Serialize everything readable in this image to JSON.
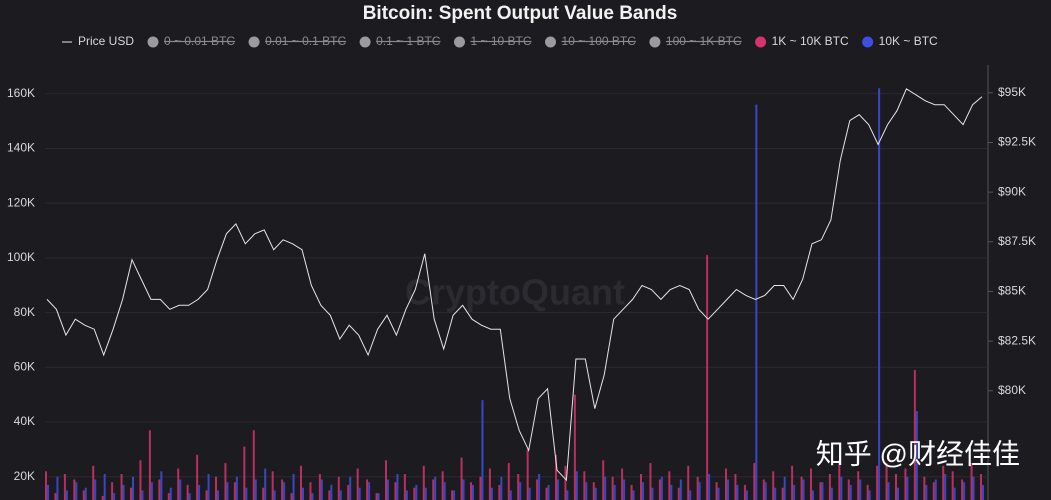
{
  "chart_data": {
    "type": "bar-line",
    "title": "Bitcoin: Spent Output Value Bands",
    "watermark": "CryptoQuant",
    "credit": "知乎 @财经佳佳",
    "ylim": [
      11500,
      170500
    ],
    "yticks": [
      {
        "value": 20000,
        "label": "20K"
      },
      {
        "value": 40000,
        "label": "40K"
      },
      {
        "value": 60000,
        "label": "60K"
      },
      {
        "value": 80000,
        "label": "80K"
      },
      {
        "value": 100000,
        "label": "100K"
      },
      {
        "value": 120000,
        "label": "120K"
      },
      {
        "value": 140000,
        "label": "140K"
      },
      {
        "value": 160000,
        "label": "160K"
      }
    ],
    "y2lim": [
      74500,
      96400
    ],
    "y2ticks": [
      {
        "value": 80000,
        "label": "$80K"
      },
      {
        "value": 82500,
        "label": "$82.5K"
      },
      {
        "value": 85000,
        "label": "$85K"
      },
      {
        "value": 87500,
        "label": "$87.5K"
      },
      {
        "value": 90000,
        "label": "$90K"
      },
      {
        "value": 92500,
        "label": "$92.5K"
      },
      {
        "value": 95000,
        "label": "$95K"
      }
    ],
    "grid": true,
    "hidden_series": [
      {
        "name": "0 ~ 0.01 BTC",
        "color": "#9a9aa0"
      },
      {
        "name": "0.01 ~ 0.1 BTC",
        "color": "#9a9aa0"
      },
      {
        "name": "0.1 ~ 1 BTC",
        "color": "#9a9aa0"
      },
      {
        "name": "1 ~ 10 BTC",
        "color": "#9a9aa0"
      },
      {
        "name": "10 ~ 100 BTC",
        "color": "#9a9aa0"
      },
      {
        "name": "100 ~ 1K BTC",
        "color": "#9a9aa0"
      }
    ],
    "series": [
      {
        "name": "Price USD",
        "type": "line",
        "axis": "y2",
        "color": "#e6e6e6",
        "values": [
          84600,
          84100,
          82800,
          83600,
          83300,
          83100,
          81800,
          83100,
          84600,
          86600,
          85600,
          84600,
          84600,
          84100,
          84300,
          84300,
          84600,
          85100,
          86600,
          87900,
          88400,
          87400,
          87900,
          88100,
          87100,
          87600,
          87400,
          87100,
          85300,
          84300,
          83800,
          82600,
          83300,
          82800,
          81800,
          83100,
          83800,
          82800,
          84100,
          85100,
          86900,
          83600,
          82100,
          83800,
          84300,
          83600,
          83300,
          83100,
          83100,
          79600,
          78000,
          77000,
          79600,
          80100,
          76000,
          75500,
          81600,
          81600,
          79100,
          80800,
          83600,
          84100,
          84600,
          85300,
          85100,
          84600,
          85100,
          85300,
          85100,
          84100,
          83600,
          84100,
          84600,
          85100,
          84800,
          84600,
          84800,
          85300,
          85300,
          84600,
          85600,
          87400,
          87600,
          88600,
          91600,
          93600,
          93900,
          93400,
          92400,
          93400,
          94100,
          95200,
          94900,
          94600,
          94400,
          94400,
          93900,
          93400,
          94400,
          94800
        ]
      },
      {
        "name": "1K ~ 10K BTC",
        "type": "bar",
        "color": "#d6336c",
        "values": [
          22000,
          14000,
          21000,
          19000,
          15000,
          24000,
          13000,
          18000,
          21000,
          16000,
          26000,
          37000,
          19000,
          14000,
          23000,
          17000,
          28000,
          15000,
          20000,
          25000,
          18000,
          31000,
          37000,
          16000,
          22000,
          19000,
          14000,
          24000,
          18000,
          21000,
          15000,
          20000,
          17000,
          23000,
          19000,
          14000,
          26000,
          18000,
          21000,
          16000,
          24000,
          19000,
          22000,
          15000,
          27000,
          18000,
          20000,
          23000,
          17000,
          25000,
          21000,
          30000,
          19000,
          16000,
          28000,
          24000,
          50000,
          22000,
          18000,
          26000,
          20000,
          23000,
          17000,
          21000,
          25000,
          19000,
          22000,
          16000,
          24000,
          20000,
          101000,
          18000,
          23000,
          21000,
          17000,
          25000,
          19000,
          22000,
          16000,
          24000,
          20000,
          23000,
          18000,
          21000,
          26000,
          19000,
          22000,
          17000,
          24000,
          25000,
          21000,
          23000,
          59000,
          20000,
          18000,
          24000,
          22000,
          19000,
          25000,
          21000
        ]
      },
      {
        "name": "10K ~ BTC",
        "type": "bar",
        "color": "#3d4fe0",
        "values": [
          17000,
          20000,
          15000,
          18000,
          16000,
          19000,
          21000,
          14000,
          17000,
          20000,
          15000,
          18000,
          22000,
          16000,
          19000,
          14000,
          17000,
          21000,
          15000,
          18000,
          20000,
          16000,
          19000,
          23000,
          15000,
          18000,
          21000,
          16000,
          14000,
          19000,
          17000,
          15000,
          20000,
          16000,
          18000,
          14000,
          19000,
          21000,
          15000,
          17000,
          16000,
          20000,
          18000,
          15000,
          19000,
          17000,
          48000,
          16000,
          20000,
          15000,
          18000,
          16000,
          21000,
          17000,
          19000,
          15000,
          22000,
          18000,
          16000,
          20000,
          17000,
          19000,
          15000,
          18000,
          16000,
          20000,
          17000,
          19000,
          15000,
          18000,
          21000,
          16000,
          19000,
          17000,
          15000,
          156000,
          18000,
          16000,
          20000,
          17000,
          19000,
          15000,
          18000,
          16000,
          20000,
          17000,
          19000,
          15000,
          162000,
          18000,
          16000,
          20000,
          44000,
          17000,
          19000,
          21000,
          16000,
          18000,
          20000,
          17000
        ]
      }
    ]
  }
}
